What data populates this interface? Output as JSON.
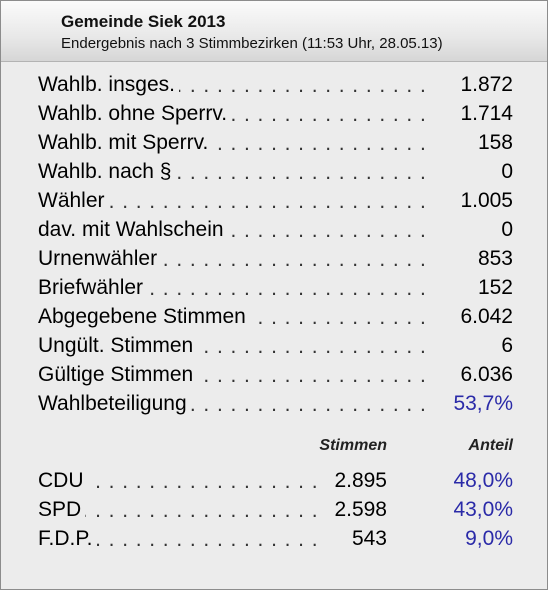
{
  "header": {
    "title": "Gemeinde Siek 2013",
    "subtitle": "Endergebnis nach 3 Stimmbezirken (11:53 Uhr, 28.05.13)"
  },
  "stats": [
    {
      "label": "Wahlb. insges.",
      "value": "1.872"
    },
    {
      "label": "Wahlb. ohne Sperrv.",
      "value": "1.714"
    },
    {
      "label": "Wahlb. mit Sperrv.",
      "value": "158"
    },
    {
      "label": "Wahlb. nach §",
      "value": "0"
    },
    {
      "label": "Wähler",
      "value": "1.005"
    },
    {
      "label": "dav. mit Wahlschein",
      "value": "0"
    },
    {
      "label": "Urnenwähler",
      "value": "853"
    },
    {
      "label": "Briefwähler",
      "value": "152"
    },
    {
      "label": "Abgegebene Stimmen",
      "value": "6.042"
    },
    {
      "label": "Ungült. Stimmen",
      "value": "6"
    },
    {
      "label": "Gültige Stimmen",
      "value": "6.036"
    },
    {
      "label": "Wahlbeteiligung",
      "value": "53,7%"
    }
  ],
  "columns": {
    "votes": "Stimmen",
    "share": "Anteil"
  },
  "parties": [
    {
      "name": "CDU",
      "votes": "2.895",
      "share": "48,0%"
    },
    {
      "name": "SPD",
      "votes": "2.598",
      "share": "43,0%"
    },
    {
      "name": "F.D.P.",
      "votes": "543",
      "share": "9,0%"
    }
  ],
  "colors": {
    "accent_blue": "#2a2aa8",
    "panel_bg": "#ececec"
  }
}
